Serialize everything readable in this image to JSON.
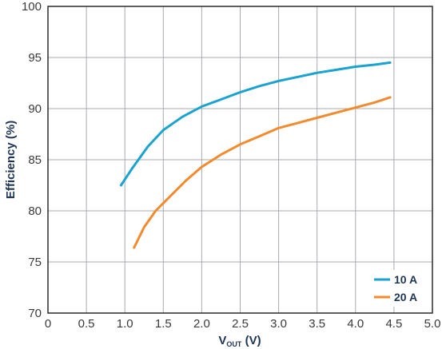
{
  "chart_data": {
    "type": "line",
    "xlabel_main": "V",
    "xlabel_sub": "OUT",
    "xlabel_unit": " (V)",
    "ylabel": "Efficiency (%)",
    "xlim": [
      0,
      5
    ],
    "ylim": [
      70,
      100
    ],
    "x_ticks": [
      "0",
      "0.5",
      "1.0",
      "1.5",
      "2.0",
      "2.5",
      "3.0",
      "3.5",
      "4.0",
      "4.5",
      "5.0"
    ],
    "y_ticks": [
      "70",
      "75",
      "80",
      "85",
      "90",
      "95",
      "100"
    ],
    "grid": true,
    "legend_position": "bottom-right",
    "series": [
      {
        "name": "10 A",
        "color": "#1ba3cf",
        "points": [
          [
            0.95,
            82.5
          ],
          [
            1.1,
            84.2
          ],
          [
            1.3,
            86.3
          ],
          [
            1.5,
            87.9
          ],
          [
            1.75,
            89.2
          ],
          [
            2.0,
            90.2
          ],
          [
            2.25,
            90.9
          ],
          [
            2.5,
            91.6
          ],
          [
            2.75,
            92.2
          ],
          [
            3.0,
            92.7
          ],
          [
            3.25,
            93.1
          ],
          [
            3.5,
            93.5
          ],
          [
            3.75,
            93.8
          ],
          [
            4.0,
            94.1
          ],
          [
            4.25,
            94.3
          ],
          [
            4.45,
            94.5
          ]
        ]
      },
      {
        "name": "20 A",
        "color": "#f28a2e",
        "points": [
          [
            1.12,
            76.4
          ],
          [
            1.25,
            78.4
          ],
          [
            1.4,
            80.0
          ],
          [
            1.6,
            81.5
          ],
          [
            1.8,
            83.0
          ],
          [
            2.0,
            84.3
          ],
          [
            2.25,
            85.5
          ],
          [
            2.5,
            86.5
          ],
          [
            2.75,
            87.3
          ],
          [
            3.0,
            88.1
          ],
          [
            3.25,
            88.6
          ],
          [
            3.5,
            89.1
          ],
          [
            3.75,
            89.6
          ],
          [
            4.0,
            90.1
          ],
          [
            4.25,
            90.6
          ],
          [
            4.45,
            91.1
          ]
        ]
      }
    ]
  }
}
